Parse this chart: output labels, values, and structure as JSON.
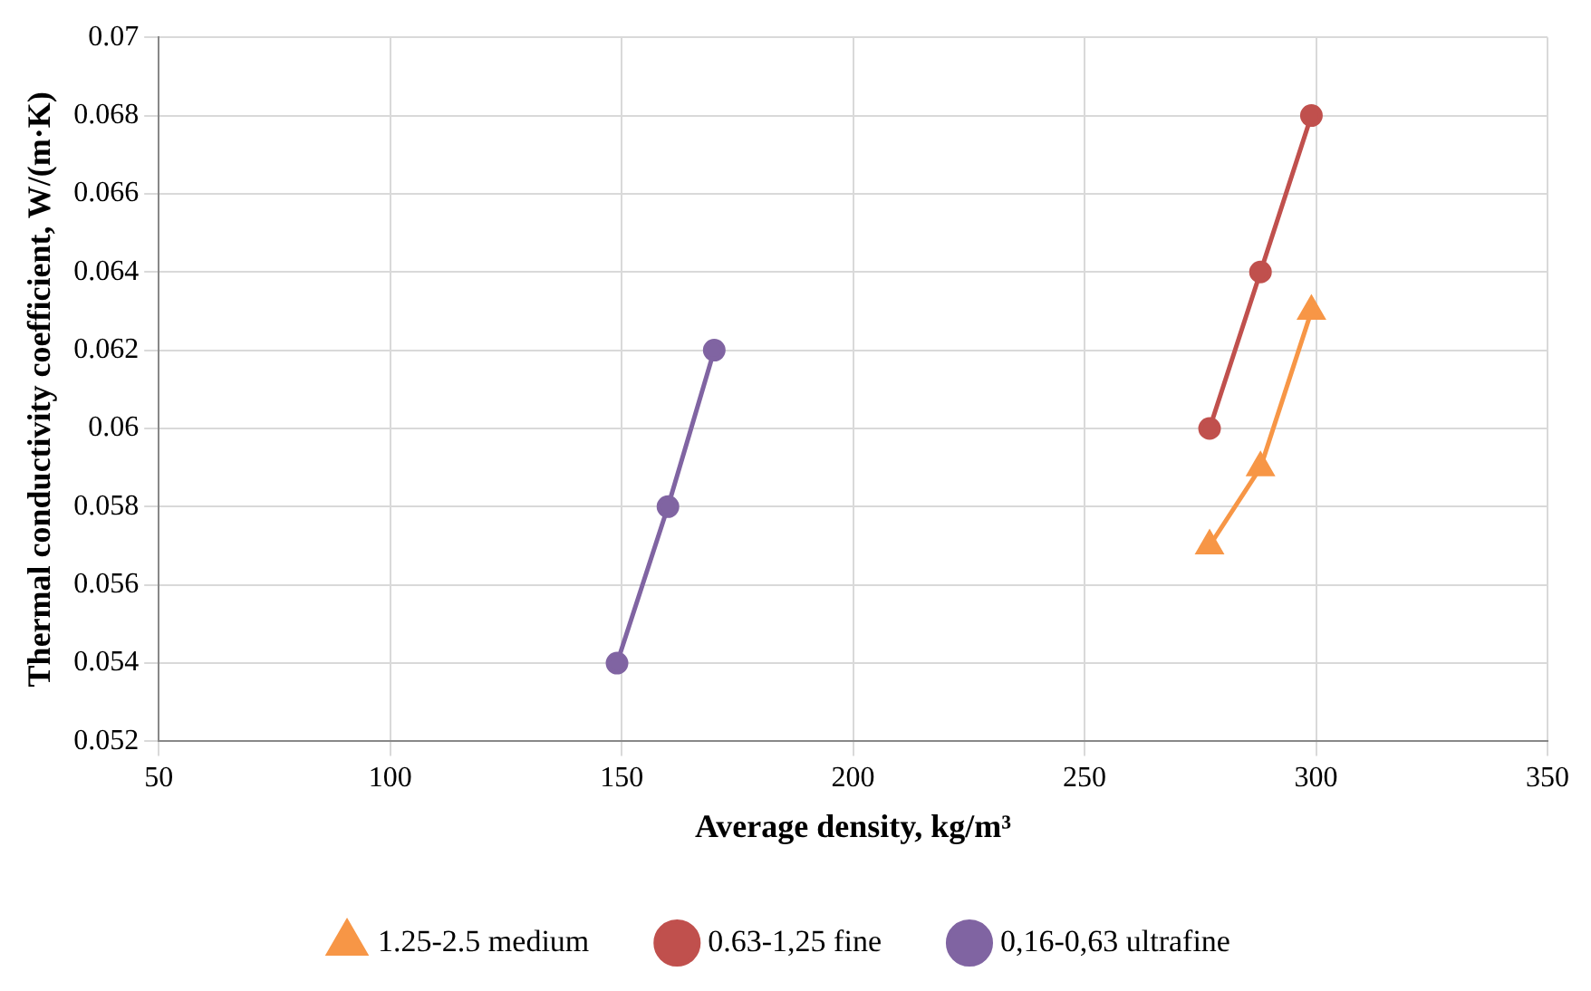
{
  "chart_data": {
    "type": "line",
    "xlabel": "Average density, kg/m³",
    "ylabel": "Thermal conductivity coefficient, W/(m·K)",
    "xlim": [
      50,
      350
    ],
    "xticks": [
      50,
      100,
      150,
      200,
      250,
      300,
      350
    ],
    "ylim": [
      0.052,
      0.07
    ],
    "yticks": [
      0.052,
      0.054,
      0.056,
      0.058,
      0.06,
      0.062,
      0.064,
      0.066,
      0.068,
      0.07
    ],
    "grid": true,
    "legend": "bottom",
    "series": [
      {
        "name": "1.25-2.5 medium",
        "color": "#f79646",
        "marker": "triangle",
        "x": [
          277,
          288,
          299
        ],
        "values": [
          0.057,
          0.059,
          0.063
        ]
      },
      {
        "name": "0.63-1,25 fine",
        "color": "#c0504d",
        "marker": "circle",
        "x": [
          277,
          288,
          299
        ],
        "values": [
          0.06,
          0.064,
          0.068
        ]
      },
      {
        "name": "0,16-0,63 ultrafine",
        "color": "#8064a2",
        "marker": "circle",
        "x": [
          149,
          160,
          170
        ],
        "values": [
          0.054,
          0.058,
          0.062
        ]
      }
    ]
  }
}
